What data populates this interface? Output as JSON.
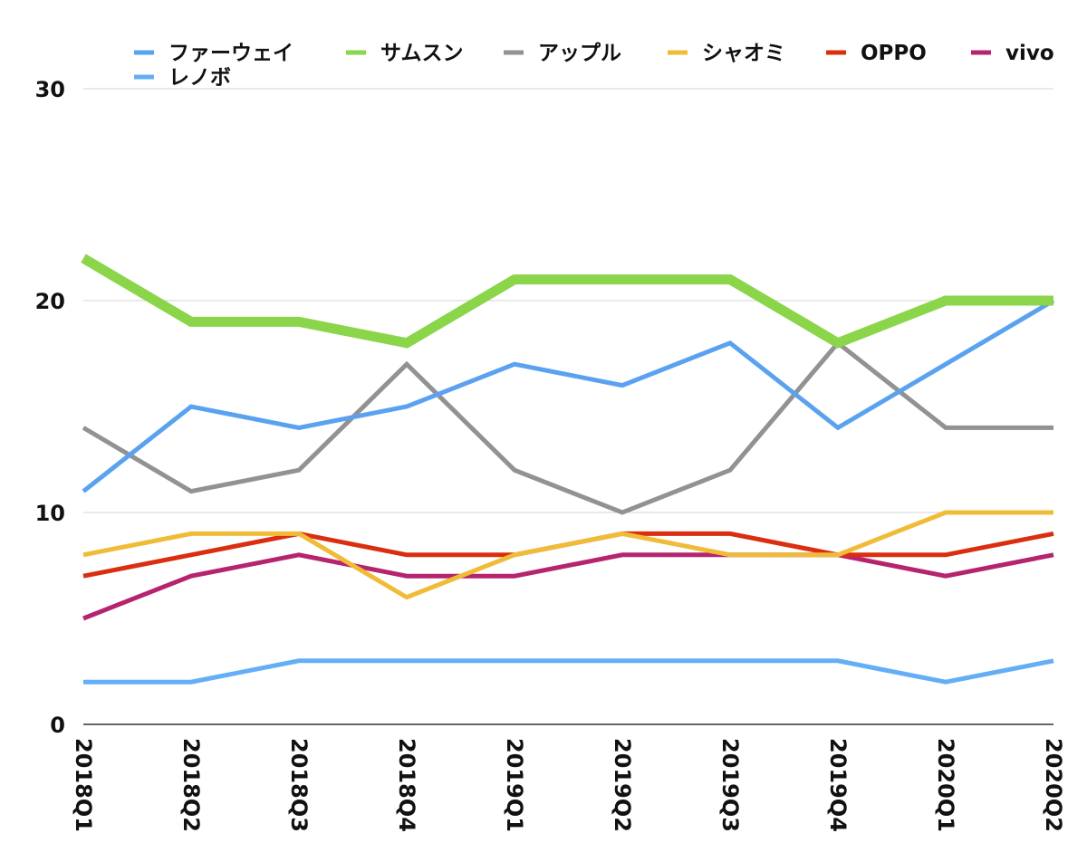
{
  "chart_data": {
    "type": "line",
    "title": "",
    "xlabel": "",
    "ylabel": "",
    "ylim": [
      0,
      30
    ],
    "yticks": [
      "0",
      "10",
      "20",
      "30"
    ],
    "grid": true,
    "legend_position": "top",
    "categories": [
      "2018Q1",
      "2018Q2",
      "2018Q3",
      "2018Q4",
      "2019Q1",
      "2019Q2",
      "2019Q3",
      "2019Q4",
      "2020Q1",
      "2020Q2"
    ],
    "series": [
      {
        "name": "ファーウェイ",
        "color": "#5aa2f0",
        "values": [
          11,
          15,
          14,
          15,
          17,
          16,
          18,
          14,
          17,
          20
        ]
      },
      {
        "name": "サムスン",
        "color": "#8ad54a",
        "values": [
          22,
          19,
          19,
          18,
          21,
          21,
          21,
          18,
          20,
          20
        ]
      },
      {
        "name": "アップル",
        "color": "#929292",
        "values": [
          14,
          11,
          12,
          17,
          12,
          10,
          12,
          18,
          14,
          14
        ]
      },
      {
        "name": "シャオミ",
        "color": "#f0bc38",
        "values": [
          8,
          9,
          9,
          6,
          8,
          9,
          8,
          8,
          10,
          10
        ]
      },
      {
        "name": "OPPO",
        "color": "#db2e10",
        "values": [
          7,
          8,
          9,
          8,
          8,
          9,
          9,
          8,
          8,
          9
        ]
      },
      {
        "name": "vivo",
        "color": "#b6246f",
        "values": [
          5,
          7,
          8,
          7,
          7,
          8,
          8,
          8,
          7,
          8
        ]
      },
      {
        "name": "レノボ",
        "color": "#63aef6",
        "values": [
          2,
          2,
          3,
          3,
          3,
          3,
          3,
          3,
          2,
          3
        ]
      }
    ]
  }
}
